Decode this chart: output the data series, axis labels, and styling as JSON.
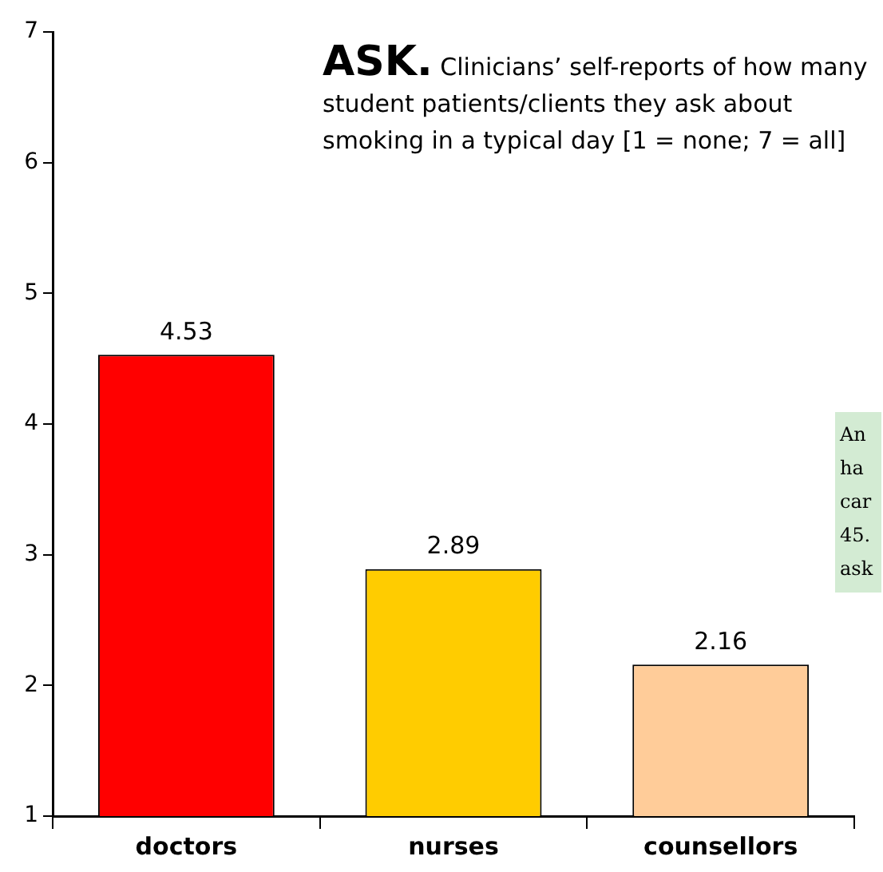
{
  "chart_data": {
    "type": "bar",
    "title": "ASK.",
    "subtitle": "Clinicians’ self-reports of how many student patients/clients they ask about smoking in a typical day [1 = none; 7 = all]",
    "categories": [
      "doctors",
      "nurses",
      "counsellors"
    ],
    "values": [
      4.53,
      2.89,
      2.16
    ],
    "colors": [
      "#ff0000",
      "#ffcc00",
      "#ffcc99"
    ],
    "ylim": [
      1,
      7
    ],
    "yticks": [
      1,
      2,
      3,
      4,
      5,
      6,
      7
    ],
    "grid": false,
    "legend": false,
    "data_labels": true,
    "annotations": [
      "An\nha\ncar\n45.\nask"
    ]
  }
}
